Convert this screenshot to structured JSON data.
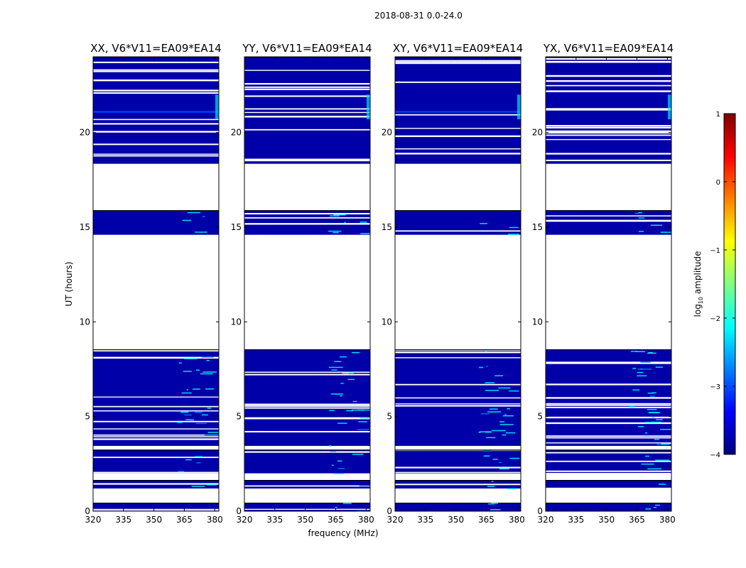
{
  "chart_data": {
    "type": "heatmap",
    "suptitle": "2018-08-31 0.0-24.0",
    "xlabel": "frequency (MHz)",
    "ylabel": "UT (hours)",
    "xlim": [
      320,
      382
    ],
    "ylim": [
      0,
      24
    ],
    "xticks": [
      320,
      335,
      350,
      365,
      380
    ],
    "yticks": [
      0,
      5,
      10,
      15,
      20
    ],
    "colorbar": {
      "label_prefix": "log",
      "label_sub": "10",
      "label_suffix": " amplitude",
      "range": [
        -4,
        1
      ],
      "ticks": [
        1,
        0,
        -1,
        -2,
        -3,
        -4
      ],
      "colors": [
        "#00007f",
        "#0000ff",
        "#007fff",
        "#00ffff",
        "#7fff7f",
        "#ffff00",
        "#ff7f00",
        "#ff0000",
        "#7f0000"
      ]
    },
    "data_segments_hours": [
      [
        0.0,
        0.45
      ],
      [
        1.2,
        1.65
      ],
      [
        2.0,
        3.25
      ],
      [
        3.45,
        8.55
      ],
      [
        14.6,
        15.9
      ],
      [
        18.35,
        24.0
      ]
    ],
    "bright_band": {
      "freq_MHz": [
        361,
        379
      ],
      "log10_amp": -1.9
    },
    "rfi_segments_hours": [
      [
        20.6,
        21.3
      ],
      [
        21.55,
        22.0
      ]
    ],
    "panels": [
      {
        "title": "XX, V6*V11=EA09*EA14"
      },
      {
        "title": "YY, V6*V11=EA09*EA14"
      },
      {
        "title": "XY, V6*V11=EA09*EA14"
      },
      {
        "title": "YX, V6*V11=EA09*EA14"
      }
    ]
  }
}
